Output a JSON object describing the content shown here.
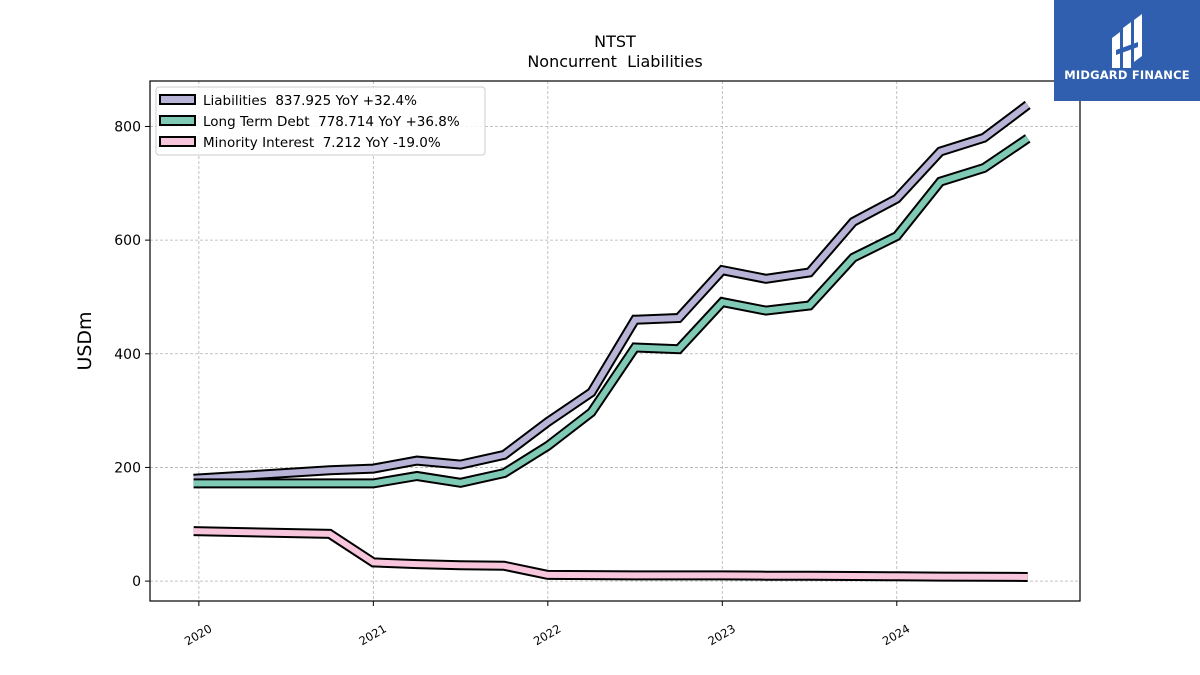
{
  "chart_data": {
    "type": "line",
    "title": "NTST",
    "subtitle": "Noncurrent  Liabilities",
    "xlabel": "",
    "ylabel": "USDm",
    "xlim": [
      2019.72,
      2025.05
    ],
    "ylim": [
      -35,
      880
    ],
    "x_ticks": [
      2020,
      2021,
      2022,
      2023,
      2024
    ],
    "x_tick_labels": [
      "2020",
      "2021",
      "2022",
      "2023",
      "2024"
    ],
    "y_ticks": [
      0,
      200,
      400,
      600,
      800
    ],
    "y_tick_labels": [
      "0",
      "200",
      "400",
      "600",
      "800"
    ],
    "grid": true,
    "legend_position": "top-left",
    "series": [
      {
        "name": "Liabilities",
        "legend": "Liabilities  837.925 YoY +32.4%",
        "color": "#b8b4d8",
        "x": [
          2019.97,
          2020.75,
          2021.0,
          2021.25,
          2021.5,
          2021.75,
          2022.0,
          2022.25,
          2022.5,
          2022.75,
          2023.0,
          2023.25,
          2023.5,
          2023.75,
          2024.0,
          2024.25,
          2024.5,
          2024.75
        ],
        "values": [
          180,
          195,
          198,
          212,
          205,
          222,
          280,
          332,
          460,
          463,
          547,
          532,
          543,
          632,
          673,
          756,
          780,
          838
        ]
      },
      {
        "name": "Long Term Debt",
        "legend": "Long Term Debt  778.714 YoY +36.8%",
        "color": "#7fcab5",
        "x": [
          2019.97,
          2020.75,
          2021.0,
          2021.25,
          2021.5,
          2021.75,
          2022.0,
          2022.25,
          2022.5,
          2022.75,
          2023.0,
          2023.25,
          2023.5,
          2023.75,
          2024.0,
          2024.25,
          2024.5,
          2024.75
        ],
        "values": [
          172,
          172,
          172,
          185,
          173,
          190,
          238,
          297,
          411,
          408,
          491,
          476,
          485,
          569,
          607,
          703,
          727,
          779
        ]
      },
      {
        "name": "Minority Interest",
        "legend": "Minority Interest  7.212 YoY -19.0%",
        "color": "#f8c6dc",
        "x": [
          2019.97,
          2020.75,
          2021.0,
          2021.25,
          2021.5,
          2021.75,
          2022.0,
          2022.25,
          2022.5,
          2022.75,
          2023.0,
          2023.25,
          2023.5,
          2023.75,
          2024.0,
          2024.25,
          2024.5,
          2024.75
        ],
        "values": [
          88,
          83,
          33,
          30,
          28,
          27,
          11,
          10.5,
          10,
          10,
          10,
          9.5,
          9.5,
          9,
          8.5,
          8,
          7.8,
          7.2
        ]
      }
    ]
  },
  "logo": {
    "text": "MIDGARD FINANCE",
    "background": "#2f5fae"
  }
}
